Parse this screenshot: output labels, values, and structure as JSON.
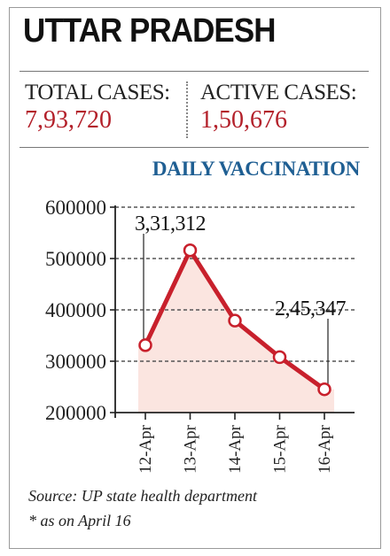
{
  "header": {
    "title": "UTTAR PRADESH"
  },
  "stats": {
    "total_label": "TOTAL CASES:",
    "total_value": "7,93,720",
    "active_label": "ACTIVE CASES:",
    "active_value": "1,50,676"
  },
  "chart_data": {
    "type": "line",
    "title": "DAILY VACCINATION",
    "xlabel": "",
    "ylabel": "",
    "categories": [
      "12-Apr",
      "13-Apr",
      "14-Apr",
      "15-Apr",
      "16-Apr"
    ],
    "series": [
      {
        "values": [
          331312,
          516000,
          379000,
          308000,
          245347
        ]
      }
    ],
    "ylim": [
      200000,
      600000
    ],
    "yticks": [
      "200000",
      "300000",
      "400000",
      "500000",
      "600000"
    ],
    "grid": true,
    "annotations": [
      {
        "text": "3,31,312",
        "point_index": 0
      },
      {
        "text": "2,45,347",
        "point_index": 4
      }
    ],
    "colors": {
      "line": "#c8202c",
      "area": "#fbe5e0",
      "grid": "#555555"
    }
  },
  "footer": {
    "source": "Source: UP state health department",
    "note": "* as on April 16"
  }
}
